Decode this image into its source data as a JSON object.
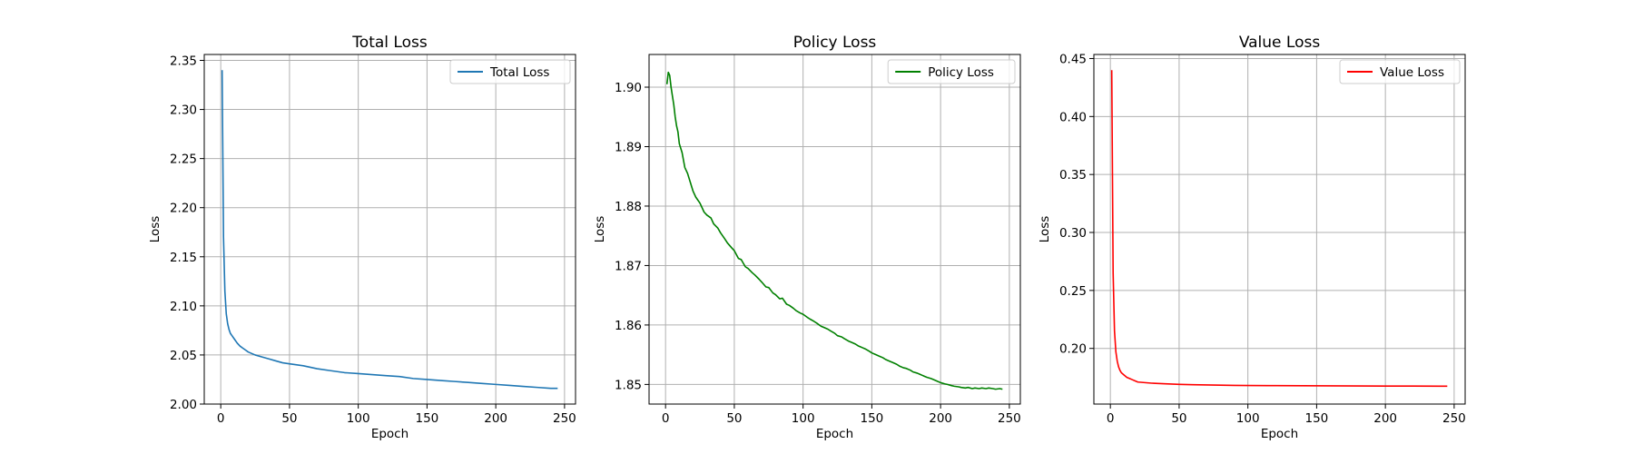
{
  "chart_data": [
    {
      "type": "line",
      "title": "Total Loss",
      "xlabel": "Epoch",
      "ylabel": "Loss",
      "xlim": [
        -12,
        258
      ],
      "ylim": [
        2.0,
        2.356
      ],
      "xticks": [
        0,
        50,
        100,
        150,
        200,
        250
      ],
      "yticks": [
        2.0,
        2.05,
        2.1,
        2.15,
        2.2,
        2.25,
        2.3,
        2.35
      ],
      "ytick_labels": [
        "2.00",
        "2.05",
        "2.10",
        "2.15",
        "2.20",
        "2.25",
        "2.30",
        "2.35"
      ],
      "grid": true,
      "legend_loc": "upper right",
      "series": [
        {
          "name": "Total Loss",
          "color": "#1f77b4",
          "x": [
            1,
            2,
            3,
            4,
            5,
            6,
            7,
            8,
            10,
            12,
            14,
            16,
            18,
            20,
            25,
            30,
            35,
            40,
            45,
            50,
            60,
            70,
            80,
            90,
            100,
            110,
            120,
            130,
            140,
            150,
            160,
            170,
            180,
            190,
            200,
            210,
            220,
            230,
            240,
            245
          ],
          "values": [
            2.34,
            2.17,
            2.115,
            2.092,
            2.082,
            2.076,
            2.072,
            2.07,
            2.066,
            2.062,
            2.059,
            2.057,
            2.055,
            2.053,
            2.05,
            2.048,
            2.046,
            2.044,
            2.042,
            2.041,
            2.039,
            2.036,
            2.034,
            2.032,
            2.031,
            2.03,
            2.029,
            2.028,
            2.026,
            2.025,
            2.024,
            2.023,
            2.022,
            2.021,
            2.02,
            2.019,
            2.018,
            2.017,
            2.016,
            2.016
          ]
        }
      ]
    },
    {
      "type": "line",
      "title": "Policy Loss",
      "xlabel": "Epoch",
      "ylabel": "Loss",
      "xlim": [
        -12,
        258
      ],
      "ylim": [
        1.8467,
        1.9055
      ],
      "xticks": [
        0,
        50,
        100,
        150,
        200,
        250
      ],
      "yticks": [
        1.85,
        1.86,
        1.87,
        1.88,
        1.89,
        1.9
      ],
      "ytick_labels": [
        "1.85",
        "1.86",
        "1.87",
        "1.88",
        "1.89",
        "1.90"
      ],
      "grid": true,
      "legend_loc": "upper right",
      "series": [
        {
          "name": "Policy Loss",
          "color": "#008000",
          "x": [
            1,
            2,
            3,
            4,
            5,
            6,
            7,
            8,
            9,
            10,
            12,
            14,
            16,
            18,
            20,
            22,
            25,
            28,
            30,
            33,
            35,
            38,
            40,
            43,
            45,
            48,
            50,
            53,
            55,
            58,
            60,
            63,
            65,
            68,
            70,
            73,
            75,
            78,
            80,
            83,
            85,
            88,
            90,
            93,
            95,
            98,
            100,
            103,
            105,
            108,
            110,
            113,
            115,
            118,
            120,
            123,
            125,
            128,
            130,
            133,
            135,
            138,
            140,
            143,
            145,
            148,
            150,
            153,
            155,
            158,
            160,
            163,
            165,
            168,
            170,
            173,
            175,
            178,
            180,
            183,
            185,
            188,
            190,
            193,
            195,
            198,
            200,
            203,
            205,
            208,
            210,
            213,
            215,
            218,
            220,
            223,
            225,
            228,
            230,
            233,
            235,
            238,
            240,
            243,
            245
          ],
          "values": [
            1.9005,
            1.9025,
            1.902,
            1.9,
            1.8985,
            1.897,
            1.895,
            1.8935,
            1.8925,
            1.8905,
            1.889,
            1.8865,
            1.8855,
            1.884,
            1.8825,
            1.8815,
            1.8805,
            1.879,
            1.8785,
            1.878,
            1.877,
            1.8763,
            1.8755,
            1.8745,
            1.8738,
            1.873,
            1.8725,
            1.8712,
            1.871,
            1.8698,
            1.8695,
            1.8688,
            1.8684,
            1.8677,
            1.8672,
            1.8664,
            1.8663,
            1.8654,
            1.8651,
            1.8644,
            1.8645,
            1.8635,
            1.8633,
            1.8628,
            1.8624,
            1.862,
            1.8618,
            1.8613,
            1.861,
            1.8606,
            1.8603,
            1.8598,
            1.8596,
            1.8593,
            1.859,
            1.8586,
            1.8582,
            1.858,
            1.8577,
            1.8573,
            1.8571,
            1.8568,
            1.8565,
            1.8562,
            1.856,
            1.8556,
            1.8553,
            1.855,
            1.8548,
            1.8545,
            1.8542,
            1.8539,
            1.8537,
            1.8534,
            1.8531,
            1.8528,
            1.8527,
            1.8524,
            1.8521,
            1.8519,
            1.8517,
            1.8514,
            1.8512,
            1.851,
            1.8508,
            1.8505,
            1.8503,
            1.8501,
            1.85,
            1.8498,
            1.8497,
            1.8496,
            1.8495,
            1.8494,
            1.8495,
            1.8493,
            1.8494,
            1.8493,
            1.8494,
            1.8493,
            1.8494,
            1.8493,
            1.8492,
            1.8493,
            1.8492
          ]
        }
      ]
    },
    {
      "type": "line",
      "title": "Value Loss",
      "xlabel": "Epoch",
      "ylabel": "Loss",
      "xlim": [
        -12,
        258
      ],
      "ylim": [
        0.152,
        0.4535
      ],
      "xticks": [
        0,
        50,
        100,
        150,
        200,
        250
      ],
      "yticks": [
        0.2,
        0.25,
        0.3,
        0.35,
        0.4,
        0.45
      ],
      "ytick_labels": [
        "0.20",
        "0.25",
        "0.30",
        "0.35",
        "0.40",
        "0.45"
      ],
      "grid": true,
      "legend_loc": "upper right",
      "series": [
        {
          "name": "Value Loss",
          "color": "#ff0000",
          "x": [
            1,
            2,
            3,
            4,
            5,
            6,
            7,
            8,
            10,
            12,
            14,
            16,
            18,
            20,
            25,
            30,
            40,
            50,
            60,
            70,
            80,
            90,
            100,
            120,
            140,
            160,
            180,
            200,
            220,
            240,
            245
          ],
          "values": [
            0.44,
            0.265,
            0.215,
            0.197,
            0.189,
            0.184,
            0.181,
            0.179,
            0.177,
            0.175,
            0.174,
            0.173,
            0.172,
            0.171,
            0.1705,
            0.17,
            0.1695,
            0.169,
            0.1687,
            0.1685,
            0.1683,
            0.1681,
            0.168,
            0.1679,
            0.1678,
            0.1677,
            0.1676,
            0.1675,
            0.1675,
            0.1674,
            0.1674
          ]
        }
      ]
    }
  ]
}
